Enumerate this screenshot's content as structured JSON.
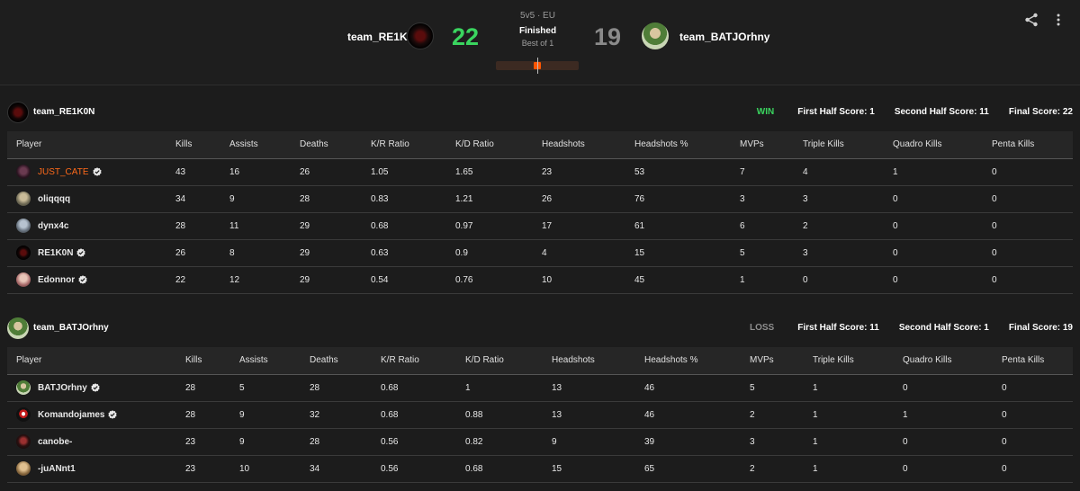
{
  "match": {
    "team1": {
      "name": "team_RE1K0N",
      "score": "22"
    },
    "team2": {
      "name": "team_BATJOrhny",
      "score": "19"
    },
    "region": "5v5 · EU",
    "status": "Finished",
    "format": "Best of 1",
    "progress": 0.5
  },
  "icons": {
    "share": "share-icon",
    "more": "more-vertical-icon",
    "verified": "verified-badge-icon"
  },
  "colors": {
    "win": "#3ad55f",
    "loss": "#8a8a8a",
    "accent": "#ff5500",
    "highlight_player": "#ff6a1a"
  },
  "teams": [
    {
      "name": "team_RE1K0N",
      "result": "WIN",
      "first_half": "First Half Score: 1",
      "second_half": "Second Half Score: 11",
      "final": "Final Score: 22",
      "headers": [
        "Player",
        "Kills",
        "Assists",
        "Deaths",
        "K/R Ratio",
        "K/D Ratio",
        "Headshots",
        "Headshots %",
        "MVPs",
        "Triple Kills",
        "Quadro Kills",
        "Penta Kills"
      ],
      "players": [
        {
          "name": "JUST_CATE",
          "verified": true,
          "highlight": true,
          "stats": [
            "43",
            "16",
            "26",
            "1.05",
            "1.65",
            "23",
            "53",
            "7",
            "4",
            "1",
            "0"
          ]
        },
        {
          "name": "oliqqqq",
          "verified": false,
          "highlight": false,
          "stats": [
            "34",
            "9",
            "28",
            "0.83",
            "1.21",
            "26",
            "76",
            "3",
            "3",
            "0",
            "0"
          ]
        },
        {
          "name": "dynx4c",
          "verified": false,
          "highlight": false,
          "stats": [
            "28",
            "11",
            "29",
            "0.68",
            "0.97",
            "17",
            "61",
            "6",
            "2",
            "0",
            "0"
          ]
        },
        {
          "name": "RE1K0N",
          "verified": true,
          "highlight": false,
          "stats": [
            "26",
            "8",
            "29",
            "0.63",
            "0.9",
            "4",
            "15",
            "5",
            "3",
            "0",
            "0"
          ]
        },
        {
          "name": "Edonnor",
          "verified": true,
          "highlight": false,
          "stats": [
            "22",
            "12",
            "29",
            "0.54",
            "0.76",
            "10",
            "45",
            "1",
            "0",
            "0",
            "0"
          ]
        }
      ]
    },
    {
      "name": "team_BATJOrhny",
      "result": "LOSS",
      "first_half": "First Half Score: 11",
      "second_half": "Second Half Score: 1",
      "final": "Final Score: 19",
      "headers": [
        "Player",
        "Kills",
        "Assists",
        "Deaths",
        "K/R Ratio",
        "K/D Ratio",
        "Headshots",
        "Headshots %",
        "MVPs",
        "Triple Kills",
        "Quadro Kills",
        "Penta Kills"
      ],
      "players": [
        {
          "name": "BATJOrhny",
          "verified": true,
          "highlight": false,
          "stats": [
            "28",
            "5",
            "28",
            "0.68",
            "1",
            "13",
            "46",
            "5",
            "1",
            "0",
            "0"
          ]
        },
        {
          "name": "Komandojames",
          "verified": true,
          "highlight": false,
          "stats": [
            "28",
            "9",
            "32",
            "0.68",
            "0.88",
            "13",
            "46",
            "2",
            "1",
            "1",
            "0"
          ]
        },
        {
          "name": "canobe-",
          "verified": false,
          "highlight": false,
          "stats": [
            "23",
            "9",
            "28",
            "0.56",
            "0.82",
            "9",
            "39",
            "3",
            "1",
            "0",
            "0"
          ]
        },
        {
          "name": "-juANnt1",
          "verified": false,
          "highlight": false,
          "stats": [
            "23",
            "10",
            "34",
            "0.56",
            "0.68",
            "15",
            "65",
            "2",
            "1",
            "0",
            "0"
          ]
        }
      ]
    }
  ]
}
